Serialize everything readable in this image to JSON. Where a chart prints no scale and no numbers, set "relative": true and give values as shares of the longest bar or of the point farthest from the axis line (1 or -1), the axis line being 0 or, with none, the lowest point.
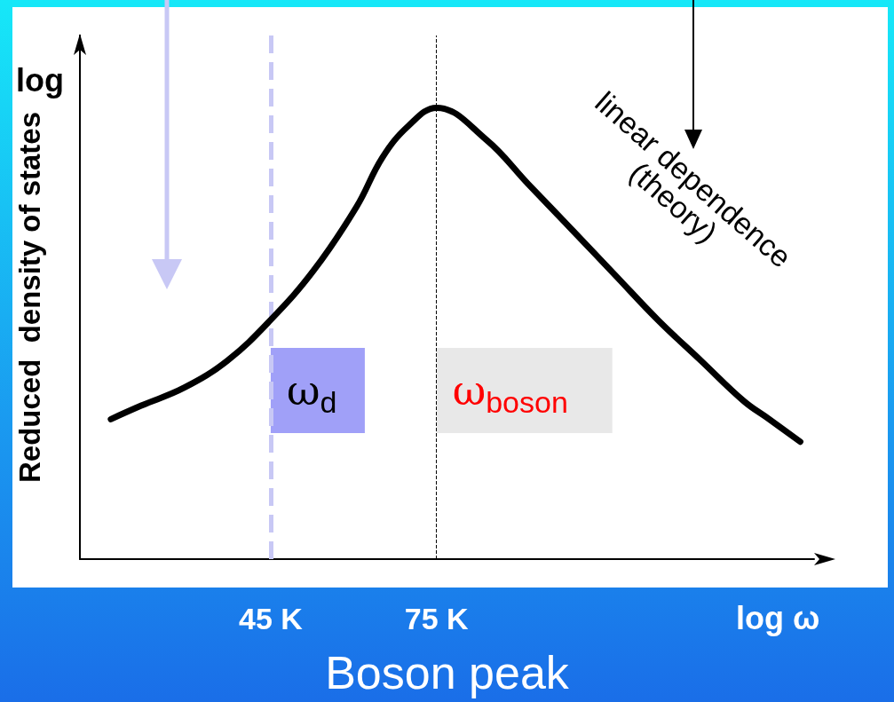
{
  "chart_data": {
    "type": "line",
    "title": "Boson peak",
    "xlabel": "log ω",
    "ylabel": "Reduced  density of states",
    "relative": true,
    "log": "x",
    "grid": false,
    "marker": "none",
    "line_style": "solid",
    "annotations": [
      "log",
      "linear dependence\n(theory)"
    ],
    "xlim": [
      25,
      240
    ],
    "xticks": [
      {
        "value": 45,
        "label": "45 K"
      },
      {
        "value": 75,
        "label": "75 K"
      }
    ],
    "ref_lines": [
      {
        "axis": "x",
        "value": 45,
        "label": "ω$_{d}$",
        "color": "#c8c8f5",
        "line_style": "dashed"
      },
      {
        "axis": "x",
        "value": 75,
        "label": "ω$_{boson}$",
        "color": "#000000",
        "line_style": "dashed"
      }
    ],
    "series": [
      {
        "color": "#000000",
        "x": [
          27.5,
          30.2,
          34.5,
          39.4,
          45,
          51.4,
          58.6,
          63.5,
          68.8,
          75,
          87.3,
          99.6,
          113.8,
          129.9,
          148.3,
          169.3,
          193.3,
          209,
          230
        ],
        "values": [
          0.31,
          0.34,
          0.38,
          0.44,
          0.53,
          0.64,
          0.78,
          0.89,
          0.96,
          1,
          0.93,
          0.83,
          0.73,
          0.63,
          0.53,
          0.44,
          0.35,
          0.31,
          0.26
        ]
      }
    ]
  }
}
